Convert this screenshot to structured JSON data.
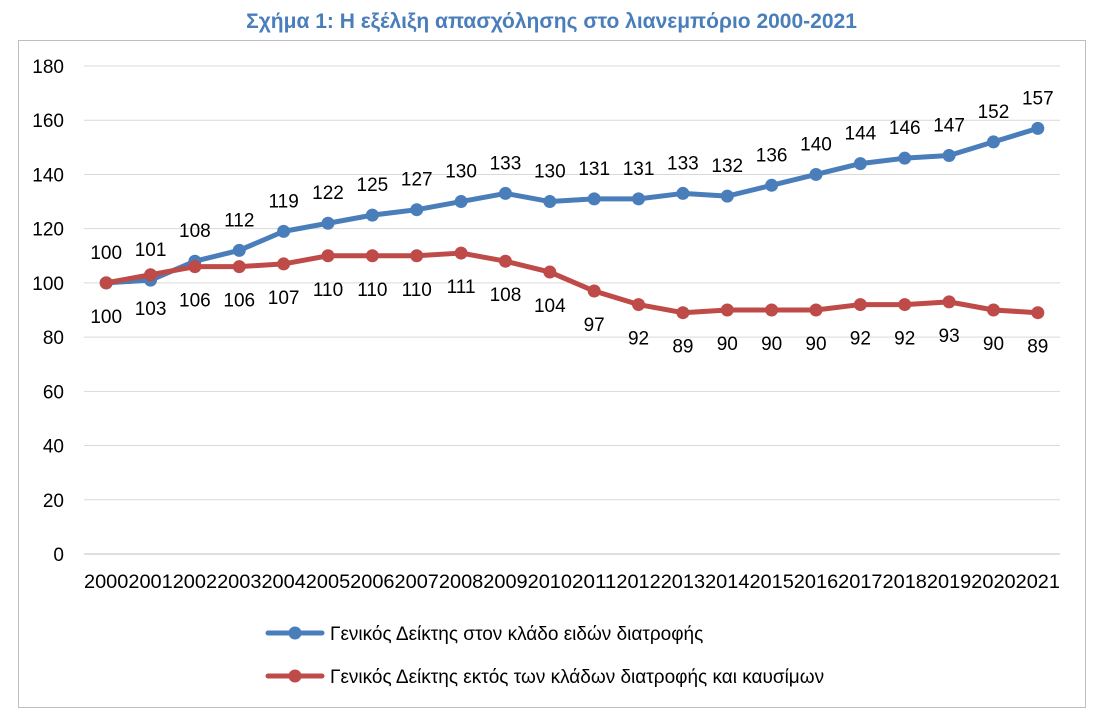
{
  "chart_data": {
    "type": "line",
    "title": "Σχήμα 1: Η εξέλιξη απασχόλησης στο λιανεμπόριο 2000-2021",
    "xlabel": "",
    "ylabel": "",
    "ylim": [
      0,
      180
    ],
    "yticks": [
      0,
      20,
      40,
      60,
      80,
      100,
      120,
      140,
      160,
      180
    ],
    "grid": true,
    "legend_position": "bottom",
    "categories": [
      "2000",
      "2001",
      "2002",
      "2003",
      "2004",
      "2005",
      "2006",
      "2007",
      "2008",
      "2009",
      "2010",
      "2011",
      "2012",
      "2013",
      "2014",
      "2015",
      "2016",
      "2017",
      "2018",
      "2019",
      "2020",
      "2021"
    ],
    "series": [
      {
        "name": "Γενικός Δείκτης στον κλάδο ειδών διατροφής",
        "color": "#4a7ebb",
        "label_position": "above",
        "values": [
          100,
          101,
          108,
          112,
          119,
          122,
          125,
          127,
          130,
          133,
          130,
          131,
          131,
          133,
          132,
          136,
          140,
          144,
          146,
          147,
          152,
          157
        ]
      },
      {
        "name": "Γενικός Δείκτης εκτός των κλάδων διατροφής και καυσίμων",
        "color": "#be4b48",
        "label_position": "below",
        "values": [
          100,
          103,
          106,
          106,
          107,
          110,
          110,
          110,
          111,
          108,
          104,
          97,
          92,
          89,
          90,
          90,
          90,
          92,
          92,
          93,
          90,
          89
        ]
      }
    ]
  }
}
